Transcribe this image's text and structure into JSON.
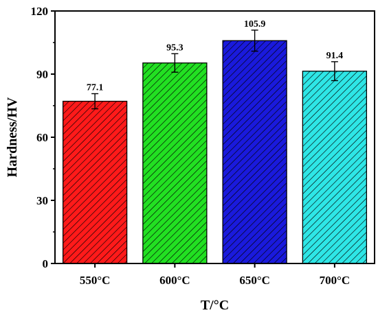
{
  "chart_data": {
    "type": "bar",
    "categories": [
      "550°C",
      "600°C",
      "650°C",
      "700°C"
    ],
    "values": [
      77.1,
      95.3,
      105.9,
      91.4
    ],
    "value_labels": [
      "77.1",
      "95.3",
      "105.9",
      "91.4"
    ],
    "errors": [
      3.6,
      4.4,
      5.0,
      4.5
    ],
    "colors": [
      "#ff1a1a",
      "#22e022",
      "#1a1adc",
      "#2ee6e6"
    ],
    "hatch": "diagonal",
    "xlabel": "T/°C",
    "ylabel": "Hardness/HV",
    "ylim": [
      0,
      120
    ],
    "yticks": [
      0,
      30,
      60,
      90,
      120
    ],
    "ytick_labels": [
      "0",
      "30",
      "60",
      "90",
      "120"
    ],
    "grid": false
  }
}
